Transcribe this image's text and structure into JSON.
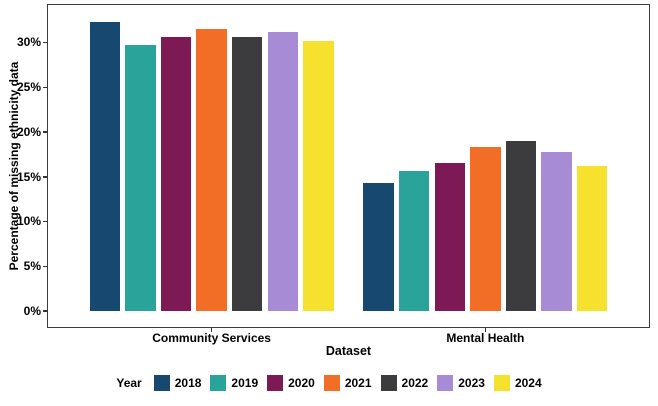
{
  "chart_data": {
    "type": "bar",
    "title": "",
    "xlabel": "Dataset",
    "ylabel": "Percentage of missing ethnicity data",
    "categories": [
      "Community Services",
      "Mental Health"
    ],
    "series": [
      {
        "name": "2018",
        "color": "#17486F",
        "values": [
          32.3,
          14.3
        ]
      },
      {
        "name": "2019",
        "color": "#2AA39A",
        "values": [
          29.7,
          15.6
        ]
      },
      {
        "name": "2020",
        "color": "#7D1A55",
        "values": [
          30.6,
          16.5
        ]
      },
      {
        "name": "2021",
        "color": "#F26D25",
        "values": [
          31.5,
          18.3
        ]
      },
      {
        "name": "2022",
        "color": "#3C3B3D",
        "values": [
          30.6,
          19.0
        ]
      },
      {
        "name": "2023",
        "color": "#A78CD5",
        "values": [
          31.2,
          17.8
        ]
      },
      {
        "name": "2024",
        "color": "#F6E12E",
        "values": [
          30.2,
          16.2
        ]
      }
    ],
    "y_ticks": [
      "0%",
      "5%",
      "10%",
      "15%",
      "20%",
      "25%",
      "30%"
    ],
    "y_tick_values": [
      0,
      5,
      10,
      15,
      20,
      25,
      30
    ],
    "ylim": [
      -1.9,
      34.3
    ],
    "grid": "horizontal major+minor",
    "legend_title": "Year",
    "legend_position": "bottom"
  },
  "colors": {
    "background": "#FFFFFF",
    "panel_border": "#3C3C3C",
    "grid_major": "#E3E3E3",
    "grid_minor": "#F2F2F2",
    "tick": "#333333",
    "text": "#000000"
  }
}
